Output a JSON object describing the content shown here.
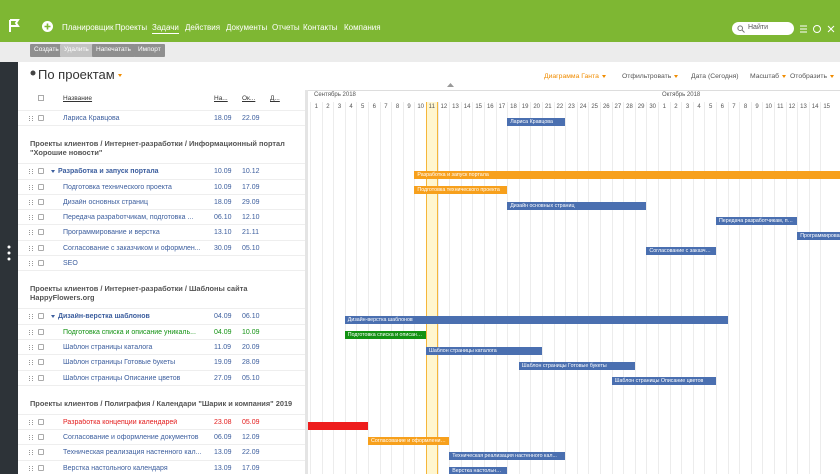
{
  "nav": {
    "items": [
      "Планировщик",
      "Проекты",
      "Задачи",
      "Действия",
      "Документы",
      "Отчеты",
      "Контакты",
      "Компания"
    ],
    "active": 2,
    "search": "Найти"
  },
  "toolbar": {
    "buttons": [
      {
        "label": "Создать",
        "disabled": false
      },
      {
        "label": "Удалить",
        "disabled": true
      },
      {
        "label": "Напечатать",
        "disabled": false
      },
      {
        "label": "Импорт",
        "disabled": false
      }
    ]
  },
  "view": {
    "title": "По проектам",
    "controls": [
      {
        "label": "Диаграмма Ганта",
        "dropdown": true,
        "accent": true
      },
      {
        "label": "Отфильтровать",
        "dropdown": true,
        "accent": false
      },
      {
        "label": "Дата (Сегодня)",
        "dropdown": false,
        "accent": false
      },
      {
        "label": "Масштаб",
        "dropdown": true,
        "accent": false
      },
      {
        "label": "Отобразить",
        "dropdown": true,
        "accent": false
      }
    ]
  },
  "table": {
    "headers": [
      "Название",
      "На...",
      "Ок...",
      "Д..."
    ],
    "rows": [
      {
        "kind": "task",
        "name": "Лариса Кравцова",
        "start": "18.09",
        "end": "22.09",
        "color": "#4a6fb0"
      },
      {
        "kind": "section",
        "name": "Проекты клиентов / Интернет-разработки / Информационный портал \"Хорошие новости\""
      },
      {
        "kind": "group",
        "name": "Разработка и запуск портала",
        "start": "10.09",
        "end": "10.12",
        "color": "#f7a01c"
      },
      {
        "kind": "task",
        "name": "Подготовка технического проекта",
        "start": "10.09",
        "end": "17.09",
        "color": "#f7a01c"
      },
      {
        "kind": "task",
        "name": "Дизайн основных страниц",
        "start": "18.09",
        "end": "29.09",
        "color": "#4a6fb0"
      },
      {
        "kind": "task",
        "name": "Передача разработчикам, подготовка ...",
        "start": "06.10",
        "end": "12.10",
        "color": "#4a6fb0"
      },
      {
        "kind": "task",
        "name": "Программирование и верстка",
        "start": "13.10",
        "end": "21.11",
        "color": "#4a6fb0"
      },
      {
        "kind": "task",
        "name": "Согласование с заказчиком и оформлен...",
        "start": "30.09",
        "end": "05.10",
        "color": "#4a6fb0"
      },
      {
        "kind": "task",
        "name": "SEO"
      },
      {
        "kind": "section",
        "name": "Проекты клиентов / Интернет-разработки / Шаблоны сайта HappyFlowers.org"
      },
      {
        "kind": "group",
        "name": "Дизайн-верстка шаблонов",
        "start": "04.09",
        "end": "06.10",
        "color": "#4a6fb0"
      },
      {
        "kind": "task",
        "name": "Подготовка списка и описание уникаль...",
        "start": "04.09",
        "end": "10.09",
        "color": "#139213",
        "text_color": "#139213"
      },
      {
        "kind": "task",
        "name": "Шаблон страницы каталога",
        "start": "11.09",
        "end": "20.09",
        "color": "#4a6fb0"
      },
      {
        "kind": "task",
        "name": "Шаблон страницы Готовые букеты",
        "start": "19.09",
        "end": "28.09",
        "color": "#4a6fb0"
      },
      {
        "kind": "task",
        "name": "Шаблон страницы Описание цветов",
        "start": "27.09",
        "end": "05.10",
        "color": "#4a6fb0"
      },
      {
        "kind": "section",
        "name": "Проекты клиентов / Полиграфия / Календари \"Шарик и компания\" 2019"
      },
      {
        "kind": "task",
        "name": "Разработка концепции календарей",
        "start": "23.08",
        "end": "05.09",
        "color": "#ee1c1c",
        "text_color": "#e31b1b"
      },
      {
        "kind": "task",
        "name": "Согласование и оформление документов",
        "start": "06.09",
        "end": "12.09",
        "color": "#f7a01c"
      },
      {
        "kind": "task",
        "name": "Техническая реализация настенного кал...",
        "start": "13.09",
        "end": "22.09",
        "color": "#4a6fb0"
      },
      {
        "kind": "task",
        "name": "Верстка настольного календаря",
        "start": "13.09",
        "end": "17.09",
        "color": "#4a6fb0"
      }
    ]
  },
  "timeline": {
    "today": 11,
    "months": [
      {
        "label": "Сентябрь 2018",
        "days": [
          1,
          2,
          3,
          4,
          5,
          6,
          7,
          8,
          9,
          10,
          11,
          12,
          13,
          14,
          15,
          16,
          17,
          18,
          19,
          20,
          21,
          22,
          23,
          24,
          25,
          26,
          27,
          28,
          29,
          30
        ]
      },
      {
        "label": "Октябрь 2018",
        "days": [
          1,
          2,
          3,
          4,
          5,
          6,
          7,
          8,
          9,
          10,
          11,
          12,
          13,
          14,
          15
        ]
      }
    ]
  }
}
